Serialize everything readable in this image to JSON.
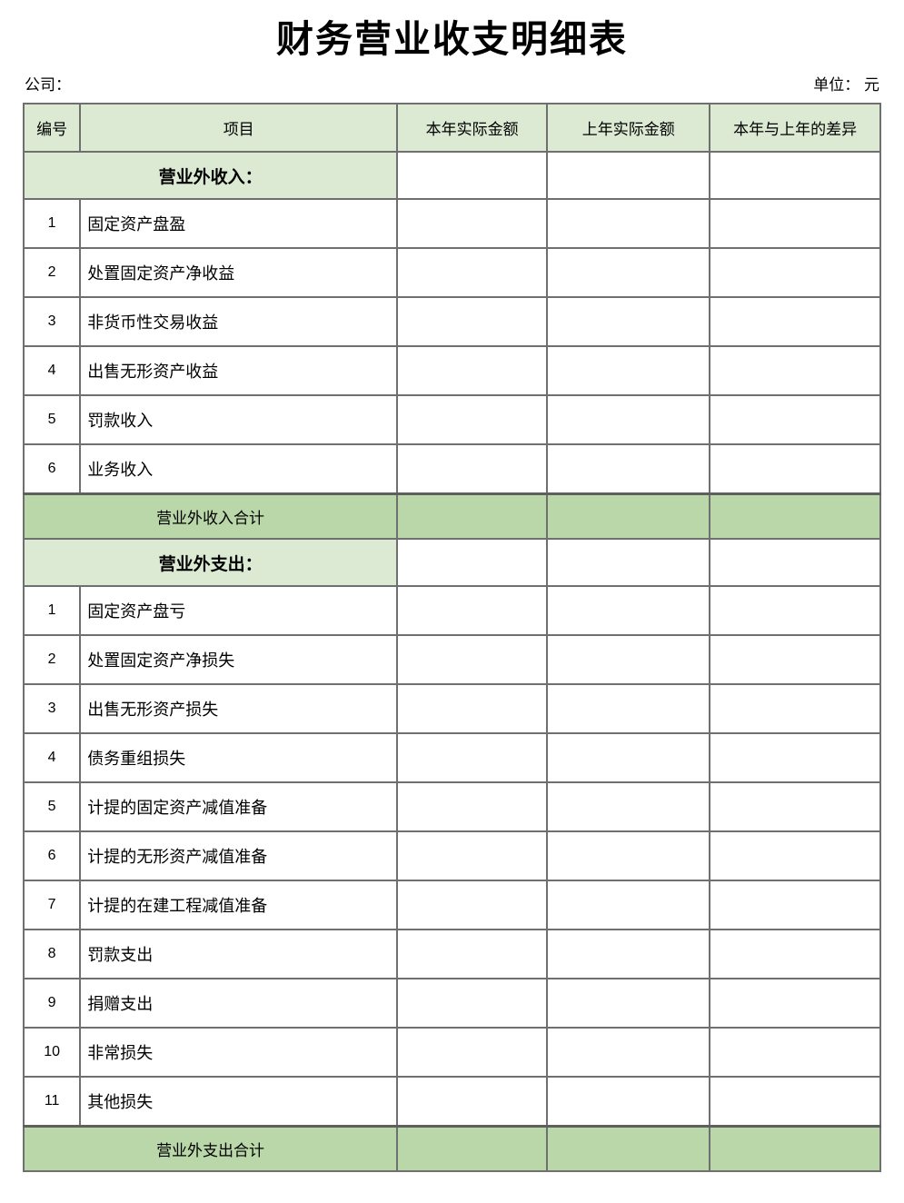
{
  "page": {
    "title": "财务营业收支明细表",
    "company_label": "公司：",
    "unit_label": "单位： 元"
  },
  "colors": {
    "header_bg": "#dcead3",
    "section_bg": "#dcead3",
    "total_bg": "#b9d7a8",
    "border": "#6f6f6f",
    "text": "#000000"
  },
  "table": {
    "headers": [
      "编号",
      "项目",
      "本年实际金额",
      "上年实际金额",
      "本年与上年的差异"
    ],
    "sections": [
      {
        "header": "营业外收入：",
        "rows": [
          {
            "no": "1",
            "item": "固定资产盘盈",
            "current": "",
            "previous": "",
            "diff": ""
          },
          {
            "no": "2",
            "item": "处置固定资产净收益",
            "current": "",
            "previous": "",
            "diff": ""
          },
          {
            "no": "3",
            "item": "非货币性交易收益",
            "current": "",
            "previous": "",
            "diff": ""
          },
          {
            "no": "4",
            "item": "出售无形资产收益",
            "current": "",
            "previous": "",
            "diff": ""
          },
          {
            "no": "5",
            "item": "罚款收入",
            "current": "",
            "previous": "",
            "diff": ""
          },
          {
            "no": "6",
            "item": "业务收入",
            "current": "",
            "previous": "",
            "diff": ""
          }
        ],
        "total_label": "营业外收入合计",
        "total": {
          "current": "",
          "previous": "",
          "diff": ""
        }
      },
      {
        "header": "营业外支出：",
        "rows": [
          {
            "no": "1",
            "item": "固定资产盘亏",
            "current": "",
            "previous": "",
            "diff": ""
          },
          {
            "no": "2",
            "item": "处置固定资产净损失",
            "current": "",
            "previous": "",
            "diff": ""
          },
          {
            "no": "3",
            "item": "出售无形资产损失",
            "current": "",
            "previous": "",
            "diff": ""
          },
          {
            "no": "4",
            "item": "债务重组损失",
            "current": "",
            "previous": "",
            "diff": ""
          },
          {
            "no": "5",
            "item": "计提的固定资产减值准备",
            "current": "",
            "previous": "",
            "diff": ""
          },
          {
            "no": "6",
            "item": "计提的无形资产减值准备",
            "current": "",
            "previous": "",
            "diff": ""
          },
          {
            "no": "7",
            "item": "计提的在建工程减值准备",
            "current": "",
            "previous": "",
            "diff": ""
          },
          {
            "no": "8",
            "item": "罚款支出",
            "current": "",
            "previous": "",
            "diff": ""
          },
          {
            "no": "9",
            "item": "捐赠支出",
            "current": "",
            "previous": "",
            "diff": ""
          },
          {
            "no": "10",
            "item": "非常损失",
            "current": "",
            "previous": "",
            "diff": ""
          },
          {
            "no": "11",
            "item": "其他损失",
            "current": "",
            "previous": "",
            "diff": ""
          }
        ],
        "total_label": "营业外支出合计",
        "total": {
          "current": "",
          "previous": "",
          "diff": ""
        }
      }
    ]
  }
}
